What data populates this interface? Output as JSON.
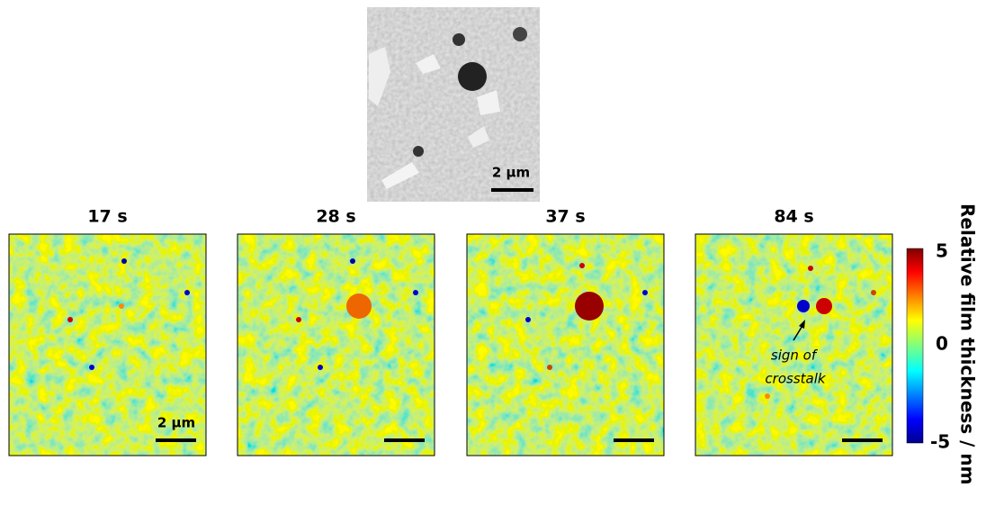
{
  "sem_image": {
    "scale_bar": "2 µm"
  },
  "panels": [
    {
      "title": "17 s",
      "scale_bar": "2 µm"
    },
    {
      "title": "28 s"
    },
    {
      "title": "37 s"
    },
    {
      "title": "84 s"
    }
  ],
  "annotation": {
    "lines": [
      "sign of",
      "crosstalk"
    ]
  },
  "colorbar": {
    "label": "Relative film thickness / nm",
    "ticks": [
      5,
      0,
      -5
    ]
  }
}
